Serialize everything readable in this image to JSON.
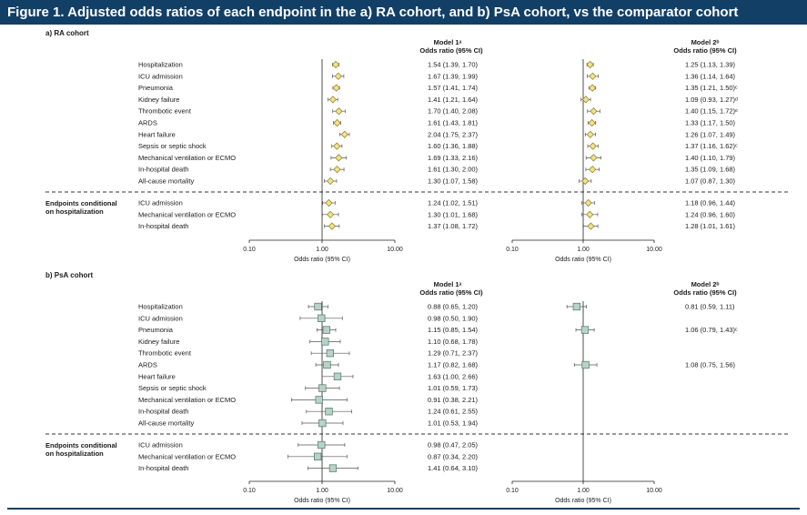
{
  "figure_title": "Figure 1. Adjusted odds ratios of each endpoint in the a) RA cohort, and b) PsA cohort, vs the comparator cohort",
  "colors": {
    "title_bar": "#123f66",
    "ra_marker": "#f2e28a",
    "ra_marker_stroke": "#8a7a20",
    "psa_marker": "#b7d3c7",
    "psa_marker_stroke": "#4f7365",
    "whisker": "#555555"
  },
  "common": {
    "group_label": "Endpoints conditional on hospitalization",
    "group_label_lines": [
      "Endpoints conditional",
      "on hospitalization"
    ],
    "model1_header": "Model 1ᵃ",
    "model2_header": "Model 2ᵇ",
    "or_header": "Odds ratio (95% CI)",
    "axis_label": "Odds ratio (95% CI)"
  },
  "chart_data": [
    {
      "type": "forest",
      "panel": "a) RA cohort",
      "x_scale": "log",
      "xlim": [
        0.1,
        10
      ],
      "xticks": [
        "0.10",
        "1.00",
        "10.00"
      ],
      "reference_line": 1.0,
      "marker": "diamond",
      "rows": [
        {
          "endpoint": "Hospitalization",
          "conditional": false,
          "m1": {
            "or": 1.54,
            "lo": 1.39,
            "hi": 1.7,
            "label": "1.54 (1.39, 1.70)"
          },
          "m2": {
            "or": 1.25,
            "lo": 1.13,
            "hi": 1.39,
            "label": "1.25 (1.13, 1.39)"
          }
        },
        {
          "endpoint": "ICU admission",
          "conditional": false,
          "m1": {
            "or": 1.67,
            "lo": 1.39,
            "hi": 1.99,
            "label": "1.67 (1.39, 1.99)"
          },
          "m2": {
            "or": 1.36,
            "lo": 1.14,
            "hi": 1.64,
            "label": "1.36 (1.14, 1.64)"
          }
        },
        {
          "endpoint": "Pneumonia",
          "conditional": false,
          "m1": {
            "or": 1.57,
            "lo": 1.41,
            "hi": 1.74,
            "label": "1.57 (1.41, 1.74)"
          },
          "m2": {
            "or": 1.35,
            "lo": 1.21,
            "hi": 1.5,
            "label": "1.35 (1.21, 1.50)ᶜ"
          }
        },
        {
          "endpoint": "Kidney failure",
          "conditional": false,
          "m1": {
            "or": 1.41,
            "lo": 1.21,
            "hi": 1.64,
            "label": "1.41 (1.21, 1.64)"
          },
          "m2": {
            "or": 1.09,
            "lo": 0.93,
            "hi": 1.27,
            "label": "1.09 (0.93, 1.27)ᵈ"
          }
        },
        {
          "endpoint": "Thrombotic event",
          "conditional": false,
          "m1": {
            "or": 1.7,
            "lo": 1.4,
            "hi": 2.08,
            "label": "1.70 (1.40, 2.08)"
          },
          "m2": {
            "or": 1.4,
            "lo": 1.15,
            "hi": 1.72,
            "label": "1.40 (1.15, 1.72)ᵉ"
          }
        },
        {
          "endpoint": "ARDS",
          "conditional": false,
          "m1": {
            "or": 1.61,
            "lo": 1.43,
            "hi": 1.81,
            "label": "1.61 (1.43, 1.81)"
          },
          "m2": {
            "or": 1.33,
            "lo": 1.17,
            "hi": 1.5,
            "label": "1.33 (1.17, 1.50)"
          }
        },
        {
          "endpoint": "Heart failure",
          "conditional": false,
          "m1": {
            "or": 2.04,
            "lo": 1.75,
            "hi": 2.37,
            "label": "2.04 (1.75, 2.37)"
          },
          "m2": {
            "or": 1.26,
            "lo": 1.07,
            "hi": 1.49,
            "label": "1.26 (1.07, 1.49)"
          }
        },
        {
          "endpoint": "Sepsis or septic shock",
          "conditional": false,
          "m1": {
            "or": 1.6,
            "lo": 1.36,
            "hi": 1.88,
            "label": "1.60 (1.36, 1.88)"
          },
          "m2": {
            "or": 1.37,
            "lo": 1.16,
            "hi": 1.62,
            "label": "1.37 (1.16, 1.62)ᶜ"
          }
        },
        {
          "endpoint": "Mechanical ventilation or ECMO",
          "conditional": false,
          "m1": {
            "or": 1.69,
            "lo": 1.33,
            "hi": 2.16,
            "label": "1.69 (1.33, 2.16)"
          },
          "m2": {
            "or": 1.4,
            "lo": 1.1,
            "hi": 1.79,
            "label": "1.40 (1.10, 1.79)"
          }
        },
        {
          "endpoint": "In-hospital death",
          "conditional": false,
          "m1": {
            "or": 1.61,
            "lo": 1.3,
            "hi": 2.0,
            "label": "1.61 (1.30, 2.00)"
          },
          "m2": {
            "or": 1.35,
            "lo": 1.09,
            "hi": 1.68,
            "label": "1.35 (1.09, 1.68)"
          }
        },
        {
          "endpoint": "All-cause mortality",
          "conditional": false,
          "m1": {
            "or": 1.3,
            "lo": 1.07,
            "hi": 1.58,
            "label": "1.30 (1.07, 1.58)"
          },
          "m2": {
            "or": 1.07,
            "lo": 0.87,
            "hi": 1.3,
            "label": "1.07 (0.87, 1.30)"
          }
        },
        {
          "endpoint": "ICU admission",
          "conditional": true,
          "m1": {
            "or": 1.24,
            "lo": 1.02,
            "hi": 1.51,
            "label": "1.24 (1.02, 1.51)"
          },
          "m2": {
            "or": 1.18,
            "lo": 0.96,
            "hi": 1.44,
            "label": "1.18 (0.96, 1.44)"
          }
        },
        {
          "endpoint": "Mechanical ventilation or ECMO",
          "conditional": true,
          "m1": {
            "or": 1.3,
            "lo": 1.01,
            "hi": 1.68,
            "label": "1.30 (1.01, 1.68)"
          },
          "m2": {
            "or": 1.24,
            "lo": 0.96,
            "hi": 1.6,
            "label": "1.24 (0.96, 1.60)"
          }
        },
        {
          "endpoint": "In-hospital death",
          "conditional": true,
          "m1": {
            "or": 1.37,
            "lo": 1.08,
            "hi": 1.72,
            "label": "1.37 (1.08, 1.72)"
          },
          "m2": {
            "or": 1.28,
            "lo": 1.01,
            "hi": 1.61,
            "label": "1.28 (1.01, 1.61)"
          }
        }
      ]
    },
    {
      "type": "forest",
      "panel": "b) PsA cohort",
      "x_scale": "log",
      "xlim": [
        0.1,
        10
      ],
      "xticks": [
        "0.10",
        "1.00",
        "10.00"
      ],
      "reference_line": 1.0,
      "marker": "square",
      "rows": [
        {
          "endpoint": "Hospitalization",
          "conditional": false,
          "m1": {
            "or": 0.88,
            "lo": 0.65,
            "hi": 1.2,
            "label": "0.88 (0.65, 1.20)"
          },
          "m2": {
            "or": 0.81,
            "lo": 0.59,
            "hi": 1.11,
            "label": "0.81 (0.59, 1.11)"
          }
        },
        {
          "endpoint": "ICU admission",
          "conditional": false,
          "m1": {
            "or": 0.98,
            "lo": 0.5,
            "hi": 1.9,
            "label": "0.98 (0.50, 1.90)"
          },
          "m2": null
        },
        {
          "endpoint": "Pneumonia",
          "conditional": false,
          "m1": {
            "or": 1.15,
            "lo": 0.85,
            "hi": 1.54,
            "label": "1.15 (0.85, 1.54)"
          },
          "m2": {
            "or": 1.06,
            "lo": 0.79,
            "hi": 1.43,
            "label": "1.06 (0.79, 1.43)ᶜ"
          }
        },
        {
          "endpoint": "Kidney failure",
          "conditional": false,
          "m1": {
            "or": 1.1,
            "lo": 0.68,
            "hi": 1.78,
            "label": "1.10 (0.68, 1.78)"
          },
          "m2": null
        },
        {
          "endpoint": "Thrombotic event",
          "conditional": false,
          "m1": {
            "or": 1.29,
            "lo": 0.71,
            "hi": 2.37,
            "label": "1.29 (0.71, 2.37)"
          },
          "m2": null
        },
        {
          "endpoint": "ARDS",
          "conditional": false,
          "m1": {
            "or": 1.17,
            "lo": 0.82,
            "hi": 1.68,
            "label": "1.17 (0.82, 1.68)"
          },
          "m2": {
            "or": 1.08,
            "lo": 0.75,
            "hi": 1.56,
            "label": "1.08 (0.75, 1.56)"
          }
        },
        {
          "endpoint": "Heart failure",
          "conditional": false,
          "m1": {
            "or": 1.63,
            "lo": 1.0,
            "hi": 2.66,
            "label": "1.63 (1.00, 2.66)"
          },
          "m2": null
        },
        {
          "endpoint": "Sepsis or septic shock",
          "conditional": false,
          "m1": {
            "or": 1.01,
            "lo": 0.59,
            "hi": 1.73,
            "label": "1.01 (0.59, 1.73)"
          },
          "m2": null
        },
        {
          "endpoint": "Mechanical ventilation or ECMO",
          "conditional": false,
          "m1": {
            "or": 0.91,
            "lo": 0.38,
            "hi": 2.21,
            "label": "0.91 (0.38, 2.21)"
          },
          "m2": null
        },
        {
          "endpoint": "In-hospital death",
          "conditional": false,
          "m1": {
            "or": 1.24,
            "lo": 0.61,
            "hi": 2.55,
            "label": "1.24 (0.61, 2.55)"
          },
          "m2": null
        },
        {
          "endpoint": "All-cause mortality",
          "conditional": false,
          "m1": {
            "or": 1.01,
            "lo": 0.53,
            "hi": 1.94,
            "label": "1.01 (0.53, 1.94)"
          },
          "m2": null
        },
        {
          "endpoint": "ICU admission",
          "conditional": true,
          "m1": {
            "or": 0.98,
            "lo": 0.47,
            "hi": 2.05,
            "label": "0.98 (0.47, 2.05)"
          },
          "m2": null
        },
        {
          "endpoint": "Mechanical ventilation or ECMO",
          "conditional": true,
          "m1": {
            "or": 0.87,
            "lo": 0.34,
            "hi": 2.2,
            "label": "0.87 (0.34, 2.20)"
          },
          "m2": null
        },
        {
          "endpoint": "In-hospital death",
          "conditional": true,
          "m1": {
            "or": 1.41,
            "lo": 0.64,
            "hi": 3.1,
            "label": "1.41 (0.64, 3.10)"
          },
          "m2": null
        }
      ]
    }
  ]
}
